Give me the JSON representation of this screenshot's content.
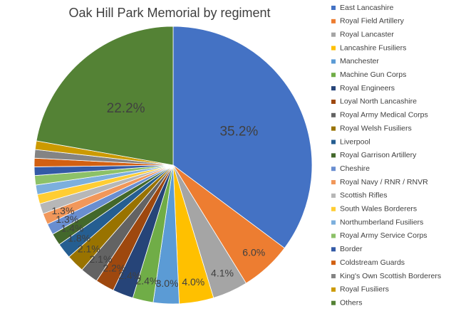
{
  "chart_data": {
    "type": "pie",
    "title": "Oak Hill Park Memorial by regiment",
    "categories": [
      "East Lancashire",
      "Royal Field Artillery",
      "Royal Lancaster",
      "Lancashire Fusiliers",
      "Manchester",
      "Machine Gun Corps",
      "Royal Engineers",
      "Loyal North Lancashire",
      "Royal Army Medical Corps",
      "Royal Welsh Fusiliers",
      "Liverpool",
      "Royal Garrison Artillery",
      "Cheshire",
      "Royal Navy / RNR / RNVR",
      "Scottish Rifles",
      "South Wales Borderers",
      "Northumberland Fusiliers",
      "Royal Army Service Corps",
      "Border",
      "Coldstream Guards",
      "King's Own Scottish Borderers",
      "Royal Fusiliers",
      "Others"
    ],
    "values": [
      35.2,
      6.0,
      4.1,
      4.0,
      3.0,
      2.4,
      2.4,
      2.2,
      2.1,
      2.1,
      1.8,
      1.4,
      1.3,
      1.3,
      1.2,
      1.1,
      1.1,
      1.1,
      1.0,
      1.0,
      1.0,
      1.0,
      22.2
    ],
    "value_labels": [
      "35.2%",
      "6.0%",
      "4.1%",
      "4.0%",
      "3.0%",
      "2.4%",
      "2.4%",
      "2.2%",
      "2.1%",
      "2.1%",
      "1.8%",
      "1.4%",
      "1.3%",
      "1.3%",
      null,
      null,
      null,
      null,
      null,
      null,
      null,
      null,
      "22.2%"
    ],
    "colors": [
      "#4472c4",
      "#ed7d31",
      "#a5a5a5",
      "#ffc000",
      "#5b9bd5",
      "#70ad47",
      "#264478",
      "#9e480e",
      "#636363",
      "#997300",
      "#255e91",
      "#43682b",
      "#698ed0",
      "#f1975a",
      "#b7b7b7",
      "#ffcd33",
      "#7cafdd",
      "#8cc168",
      "#335aa6",
      "#d26012",
      "#848484",
      "#cc9a00",
      "#548235"
    ],
    "legend": "right"
  }
}
